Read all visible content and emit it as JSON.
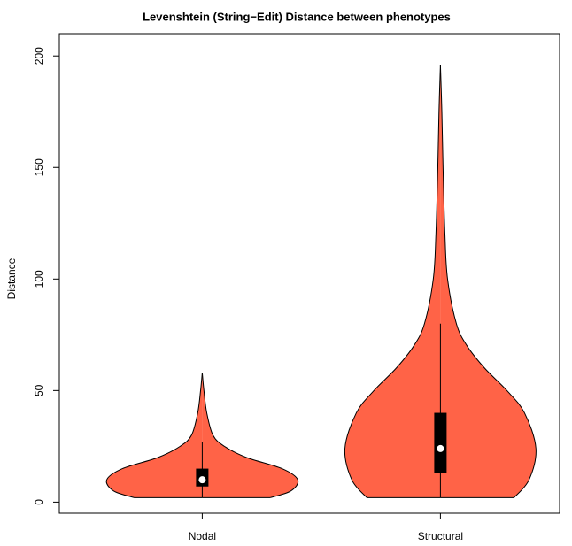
{
  "chart_data": {
    "type": "violin",
    "title": "Levenshtein (String−Edit) Distance between phenotypes",
    "y_label": "Distance",
    "categories": [
      "Nodal",
      "Structural"
    ],
    "color": "#ff6347",
    "ylim": [
      -5,
      210
    ],
    "yticks": [
      0,
      50,
      100,
      150,
      200
    ],
    "series": [
      {
        "name": "Nodal",
        "min": 2,
        "q1": 7,
        "median": 10,
        "q3": 15,
        "whisker_high": 27,
        "density": {
          "y": [
            2,
            5,
            10,
            15,
            20,
            25,
            30,
            40,
            50,
            58
          ],
          "halfwidth": [
            0.286,
            0.372,
            0.401,
            0.335,
            0.186,
            0.093,
            0.045,
            0.019,
            0.007,
            0
          ]
        }
      },
      {
        "name": "Structural",
        "min": 2,
        "q1": 13,
        "median": 24,
        "q3": 40,
        "whisker_high": 80,
        "density": {
          "y": [
            2,
            10,
            24,
            40,
            50,
            60,
            70,
            80,
            100,
            120,
            150,
            175,
            196
          ],
          "halfwidth": [
            0.309,
            0.372,
            0.401,
            0.353,
            0.279,
            0.186,
            0.112,
            0.067,
            0.03,
            0.019,
            0.011,
            0.006,
            0
          ]
        }
      }
    ]
  }
}
